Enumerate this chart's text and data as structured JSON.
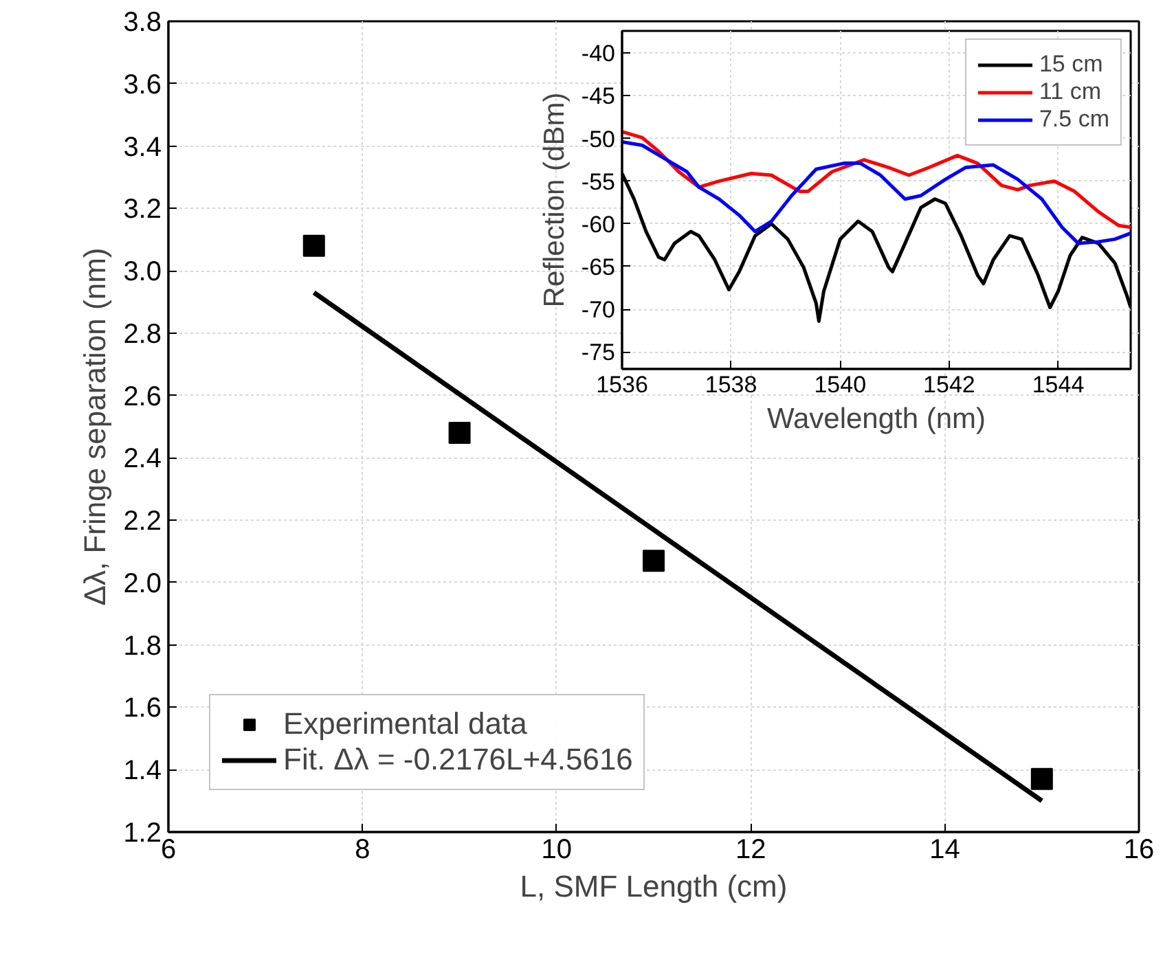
{
  "chart_data": [
    {
      "type": "scatter",
      "xlabel": "L, SMF Length (cm)",
      "ylabel": "Δλ, Fringe separation (nm)",
      "xlim": [
        6,
        16
      ],
      "ylim": [
        1.2,
        3.8
      ],
      "xticks": [
        6,
        8,
        10,
        12,
        14,
        16
      ],
      "yticks": [
        1.2,
        1.4,
        1.6,
        1.8,
        {
          "value": 2.0,
          "label": "2.0"
        },
        2.2,
        2.4,
        2.6,
        2.8,
        {
          "value": 3.0,
          "label": "3.0"
        },
        3.2,
        3.4,
        3.6,
        3.8
      ],
      "grid": true,
      "legend": "bottom left",
      "series": [
        {
          "name": "Experimental data",
          "type": "scatter",
          "marker": "square",
          "color": "#000000",
          "x": [
            7.5,
            9,
            11,
            15
          ],
          "values": [
            3.08,
            2.48,
            2.07,
            1.37
          ]
        },
        {
          "name": "Fit. Δλ = -0.2176L+4.5616",
          "type": "line",
          "line_style": "solid",
          "color": "#000000",
          "x": [
            7.5,
            15
          ],
          "values": [
            2.93,
            1.3
          ]
        }
      ]
    },
    {
      "type": "line",
      "xlabel": "Wavelength (nm)",
      "ylabel": "Reflection (dBm)",
      "xlim": [
        1536,
        1545.33
      ],
      "ylim": [
        -77,
        -37.4
      ],
      "xticks": [
        1536,
        1538,
        1540,
        1542,
        1544
      ],
      "yticks": [
        -40,
        -45,
        -50,
        -55,
        -60,
        -65,
        -70,
        -75
      ],
      "grid": true,
      "legend": "top right",
      "line_style": "solid",
      "series": [
        {
          "name": "15 cm",
          "color": "#000000",
          "x": [
            1536,
            1536.22,
            1536.44,
            1536.67,
            1536.78,
            1536.96,
            1537.26,
            1537.41,
            1537.7,
            1537.96,
            1538.15,
            1538.44,
            1538.74,
            1539.04,
            1539.33,
            1539.56,
            1539.61,
            1539.7,
            1540.0,
            1540.33,
            1540.59,
            1540.89,
            1540.96,
            1541.19,
            1541.48,
            1541.74,
            1541.93,
            1542.22,
            1542.52,
            1542.63,
            1542.81,
            1543.11,
            1543.33,
            1543.63,
            1543.85,
            1544.0,
            1544.22,
            1544.44,
            1544.74,
            1545.04,
            1545.26,
            1545.33
          ],
          "values": [
            -54.1,
            -57.1,
            -60.9,
            -63.9,
            -64.2,
            -62.3,
            -60.9,
            -61.4,
            -64.2,
            -67.7,
            -65.6,
            -61.4,
            -60.0,
            -61.8,
            -65.1,
            -69.3,
            -71.4,
            -67.9,
            -61.8,
            -59.7,
            -60.9,
            -65.1,
            -65.6,
            -62.3,
            -58.1,
            -57.1,
            -57.6,
            -61.4,
            -66.0,
            -67.0,
            -64.2,
            -61.4,
            -61.8,
            -66.0,
            -69.8,
            -67.9,
            -63.7,
            -61.6,
            -62.3,
            -64.6,
            -68.4,
            -69.8
          ]
        },
        {
          "name": "11 cm",
          "color": "#ff0000",
          "x": [
            1536,
            1536.37,
            1536.67,
            1537.04,
            1537.41,
            1537.78,
            1538.37,
            1538.74,
            1539.26,
            1539.41,
            1539.85,
            1540.44,
            1540.89,
            1541.26,
            1541.63,
            1542.15,
            1542.52,
            1542.96,
            1543.26,
            1543.48,
            1543.93,
            1544.3,
            1544.74,
            1545.11,
            1545.33
          ],
          "values": [
            -49.2,
            -49.9,
            -51.5,
            -53.9,
            -55.7,
            -55.0,
            -54.1,
            -54.3,
            -56.2,
            -56.2,
            -53.9,
            -52.5,
            -53.4,
            -54.3,
            -53.4,
            -52.0,
            -52.9,
            -55.5,
            -56.0,
            -55.5,
            -55.0,
            -56.2,
            -58.6,
            -60.2,
            -60.4
          ]
        },
        {
          "name": "7.5 cm",
          "color": "#0000ff",
          "x": [
            1536,
            1536.37,
            1536.74,
            1537.19,
            1537.41,
            1537.78,
            1538.15,
            1538.44,
            1538.74,
            1539.11,
            1539.56,
            1540.07,
            1540.37,
            1540.74,
            1541.19,
            1541.48,
            1541.93,
            1542.3,
            1542.81,
            1543.26,
            1543.7,
            1544.07,
            1544.37,
            1544.74,
            1545.04,
            1545.33
          ],
          "values": [
            -50.4,
            -50.8,
            -52.2,
            -53.9,
            -55.7,
            -57.1,
            -59.0,
            -60.9,
            -59.7,
            -56.7,
            -53.6,
            -52.9,
            -52.9,
            -54.3,
            -57.1,
            -56.7,
            -54.8,
            -53.4,
            -53.1,
            -54.8,
            -57.1,
            -60.4,
            -62.3,
            -62.1,
            -61.8,
            -61.1
          ]
        }
      ]
    }
  ]
}
